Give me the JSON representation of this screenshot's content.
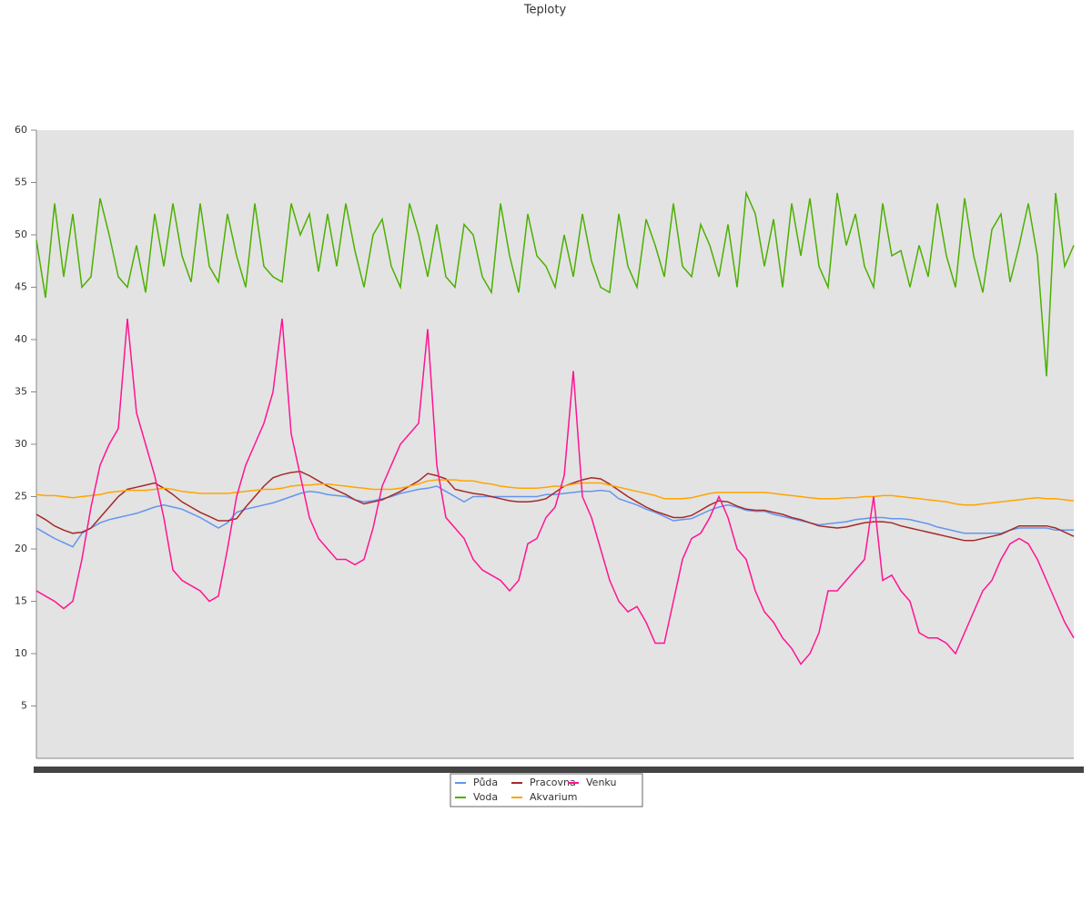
{
  "chart_data": {
    "type": "line",
    "title": "Teploty",
    "ylim": [
      0,
      60
    ],
    "yticks": [
      5,
      10,
      15,
      20,
      25,
      30,
      35,
      40,
      45,
      50,
      55,
      60
    ],
    "legend": "bottom",
    "series": [
      {
        "name": "Půda",
        "color": "#6495ed",
        "values": [
          22,
          21.5,
          21,
          20.6,
          20.2,
          21.5,
          22,
          22.5,
          22.8,
          23,
          23.2,
          23.4,
          23.7,
          24,
          24.2,
          24,
          23.8,
          23.4,
          23,
          22.5,
          22,
          22.5,
          23.5,
          23.8,
          24,
          24.2,
          24.4,
          24.7,
          25,
          25.3,
          25.5,
          25.4,
          25.2,
          25.1,
          25,
          24.7,
          24.5,
          24.6,
          24.8,
          25,
          25.3,
          25.5,
          25.7,
          25.8,
          26,
          25.5,
          25,
          24.5,
          25,
          25,
          25,
          25,
          25,
          25,
          25,
          25,
          25.2,
          25.2,
          25.3,
          25.4,
          25.5,
          25.5,
          25.6,
          25.5,
          24.8,
          24.5,
          24.2,
          23.8,
          23.5,
          23.1,
          22.7,
          22.8,
          22.9,
          23.3,
          23.7,
          24,
          24.2,
          24,
          23.7,
          23.6,
          23.6,
          23.3,
          23.1,
          22.9,
          22.7,
          22.5,
          22.3,
          22.4,
          22.5,
          22.6,
          22.8,
          22.9,
          23,
          23,
          22.9,
          22.9,
          22.8,
          22.6,
          22.4,
          22.1,
          21.9,
          21.7,
          21.5,
          21.5,
          21.5,
          21.5,
          21.5,
          21.8,
          22,
          22,
          22,
          22,
          21.8,
          21.8,
          21.8
        ]
      },
      {
        "name": "Voda",
        "color": "#4cb000",
        "values": [
          49.5,
          44,
          53,
          46,
          52,
          45,
          46,
          53.5,
          50,
          46,
          45,
          49,
          44.5,
          52,
          47,
          53,
          48,
          45.5,
          53,
          47,
          45.5,
          52,
          48,
          45,
          53,
          47,
          46,
          45.5,
          53,
          50,
          52,
          46.5,
          52,
          47,
          53,
          48.5,
          45,
          50,
          51.5,
          47,
          45,
          53,
          50,
          46,
          51,
          46,
          45,
          51,
          50,
          46,
          44.5,
          53,
          48,
          44.5,
          52,
          48,
          47,
          45,
          50,
          46,
          52,
          47.5,
          45,
          44.5,
          52,
          47,
          45,
          51.5,
          49,
          46,
          53,
          47,
          46,
          51,
          49,
          46,
          51,
          45,
          54,
          52,
          47,
          51.5,
          45,
          53,
          48,
          53.5,
          47,
          45,
          54,
          49,
          52,
          47,
          45,
          53,
          48,
          48.5,
          45,
          49,
          46,
          53,
          48,
          45,
          53.5,
          48,
          44.5,
          50.5,
          52,
          45.5,
          49,
          53,
          48,
          36.5,
          54,
          47,
          49
        ]
      },
      {
        "name": "Pracovna",
        "color": "#a52a2a",
        "values": [
          23.3,
          22.8,
          22.2,
          21.8,
          21.5,
          21.6,
          22,
          23,
          24,
          25,
          25.7,
          25.9,
          26.1,
          26.3,
          25.8,
          25.2,
          24.5,
          24,
          23.5,
          23.1,
          22.7,
          22.7,
          22.9,
          24,
          25,
          26,
          26.8,
          27.1,
          27.3,
          27.4,
          27,
          26.5,
          26,
          25.6,
          25.2,
          24.7,
          24.3,
          24.5,
          24.7,
          25.1,
          25.5,
          26,
          26.5,
          27.2,
          27,
          26.7,
          25.7,
          25.5,
          25.3,
          25.2,
          25,
          24.8,
          24.6,
          24.5,
          24.5,
          24.6,
          24.8,
          25.4,
          26,
          26.3,
          26.6,
          26.8,
          26.7,
          26.2,
          25.6,
          25,
          24.5,
          24,
          23.6,
          23.3,
          23,
          23,
          23.2,
          23.7,
          24.2,
          24.6,
          24.5,
          24.1,
          23.8,
          23.7,
          23.7,
          23.5,
          23.3,
          23,
          22.8,
          22.5,
          22.2,
          22.1,
          22,
          22.1,
          22.3,
          22.5,
          22.6,
          22.6,
          22.5,
          22.2,
          22,
          21.8,
          21.6,
          21.4,
          21.2,
          21,
          20.8,
          20.8,
          21,
          21.2,
          21.4,
          21.8,
          22.2,
          22.2,
          22.2,
          22.2,
          22,
          21.6,
          21.2
        ]
      },
      {
        "name": "Akvarium",
        "color": "#ffa500",
        "values": [
          25.2,
          25.1,
          25.1,
          25,
          24.9,
          25,
          25.1,
          25.2,
          25.4,
          25.5,
          25.6,
          25.6,
          25.6,
          25.7,
          25.8,
          25.7,
          25.5,
          25.4,
          25.3,
          25.3,
          25.3,
          25.3,
          25.4,
          25.5,
          25.6,
          25.7,
          25.7,
          25.8,
          26,
          26.1,
          26.1,
          26.2,
          26.2,
          26.1,
          26,
          25.9,
          25.8,
          25.7,
          25.7,
          25.7,
          25.8,
          26,
          26.2,
          26.5,
          26.6,
          26.6,
          26.6,
          26.5,
          26.5,
          26.3,
          26.2,
          26,
          25.9,
          25.8,
          25.8,
          25.8,
          25.9,
          26,
          26,
          26.2,
          26.3,
          26.3,
          26.3,
          26.1,
          25.9,
          25.7,
          25.5,
          25.3,
          25.1,
          24.8,
          24.8,
          24.8,
          24.9,
          25.1,
          25.3,
          25.4,
          25.4,
          25.4,
          25.4,
          25.4,
          25.4,
          25.3,
          25.2,
          25.1,
          25,
          24.9,
          24.8,
          24.8,
          24.8,
          24.9,
          24.9,
          25,
          25,
          25.1,
          25.1,
          25,
          24.9,
          24.8,
          24.7,
          24.6,
          24.5,
          24.3,
          24.2,
          24.2,
          24.3,
          24.4,
          24.5,
          24.6,
          24.7,
          24.8,
          24.9,
          24.8,
          24.8,
          24.7,
          24.6
        ]
      },
      {
        "name": "Venku",
        "color": "#ff1493",
        "values": [
          16,
          15.5,
          15,
          14.3,
          15,
          19,
          24,
          28,
          30,
          31.5,
          42,
          33,
          30,
          27,
          23,
          18,
          17,
          16.5,
          16,
          15,
          15.5,
          20,
          25,
          28,
          30,
          32,
          35,
          42,
          31,
          27,
          23,
          21,
          20,
          19,
          19,
          18.5,
          19,
          22,
          26,
          28,
          30,
          31,
          32,
          41,
          28,
          23,
          22,
          21,
          19,
          18,
          17.5,
          17,
          16,
          17,
          20.5,
          21,
          23,
          24,
          27,
          37,
          25,
          23,
          20,
          17,
          15,
          14,
          14.5,
          13,
          11,
          11,
          15,
          19,
          21,
          21.5,
          23,
          25,
          23,
          20,
          19,
          16,
          14,
          13,
          11.5,
          10.5,
          9,
          10,
          12,
          16,
          16,
          17,
          18,
          19,
          25,
          17,
          17.5,
          16,
          15,
          12,
          11.5,
          11.5,
          11,
          10,
          12,
          14,
          16,
          17,
          19,
          20.5,
          21,
          20.5,
          19,
          17,
          15,
          13,
          11.5
        ]
      }
    ]
  }
}
